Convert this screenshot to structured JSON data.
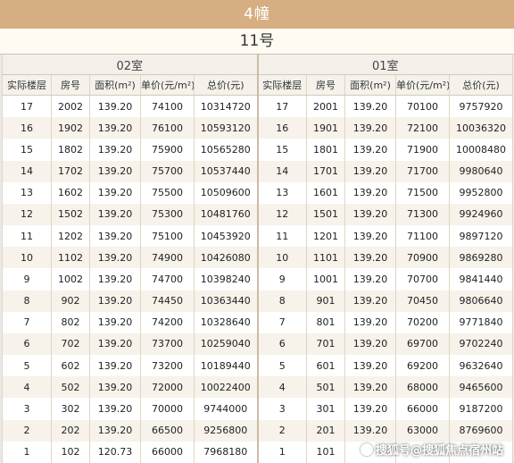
{
  "building": "4幢",
  "unit": "11号",
  "rooms": {
    "left": "02室",
    "right": "01室"
  },
  "headers": [
    "实际楼层",
    "房号",
    "面积(m²)",
    "单价(元/m²)",
    "总价(元)"
  ],
  "left_rows": [
    [
      "17",
      "2002",
      "139.20",
      "74100",
      "10314720"
    ],
    [
      "16",
      "1902",
      "139.20",
      "76100",
      "10593120"
    ],
    [
      "15",
      "1802",
      "139.20",
      "75900",
      "10565280"
    ],
    [
      "14",
      "1702",
      "139.20",
      "75700",
      "10537440"
    ],
    [
      "13",
      "1602",
      "139.20",
      "75500",
      "10509600"
    ],
    [
      "12",
      "1502",
      "139.20",
      "75300",
      "10481760"
    ],
    [
      "11",
      "1202",
      "139.20",
      "75100",
      "10453920"
    ],
    [
      "10",
      "1102",
      "139.20",
      "74900",
      "10426080"
    ],
    [
      "9",
      "1002",
      "139.20",
      "74700",
      "10398240"
    ],
    [
      "8",
      "902",
      "139.20",
      "74450",
      "10363440"
    ],
    [
      "7",
      "802",
      "139.20",
      "74200",
      "10328640"
    ],
    [
      "6",
      "702",
      "139.20",
      "73700",
      "10259040"
    ],
    [
      "5",
      "602",
      "139.20",
      "73200",
      "10189440"
    ],
    [
      "4",
      "502",
      "139.20",
      "72000",
      "10022400"
    ],
    [
      "3",
      "302",
      "139.20",
      "70000",
      "9744000"
    ],
    [
      "2",
      "202",
      "139.20",
      "66500",
      "9256800"
    ],
    [
      "1",
      "102",
      "120.73",
      "66000",
      "7968180"
    ]
  ],
  "right_rows": [
    [
      "17",
      "2001",
      "139.20",
      "70100",
      "9757920"
    ],
    [
      "16",
      "1901",
      "139.20",
      "72100",
      "10036320"
    ],
    [
      "15",
      "1801",
      "139.20",
      "71900",
      "10008480"
    ],
    [
      "14",
      "1701",
      "139.20",
      "71700",
      "9980640"
    ],
    [
      "13",
      "1601",
      "139.20",
      "71500",
      "9952800"
    ],
    [
      "12",
      "1501",
      "139.20",
      "71300",
      "9924960"
    ],
    [
      "11",
      "1201",
      "139.20",
      "71100",
      "9897120"
    ],
    [
      "10",
      "1101",
      "139.20",
      "70900",
      "9869280"
    ],
    [
      "9",
      "1001",
      "139.20",
      "70700",
      "9841440"
    ],
    [
      "8",
      "901",
      "139.20",
      "70450",
      "9806640"
    ],
    [
      "7",
      "801",
      "139.20",
      "70200",
      "9771840"
    ],
    [
      "6",
      "701",
      "139.20",
      "69700",
      "9702240"
    ],
    [
      "5",
      "601",
      "139.20",
      "69200",
      "9632640"
    ],
    [
      "4",
      "501",
      "139.20",
      "68000",
      "9465600"
    ],
    [
      "3",
      "301",
      "139.20",
      "66000",
      "9187200"
    ],
    [
      "2",
      "201",
      "139.20",
      "63000",
      "8769600"
    ],
    [
      "1",
      "101",
      "",
      "",
      ""
    ]
  ],
  "watermark": "搜狐号@搜狐焦点宿州站"
}
